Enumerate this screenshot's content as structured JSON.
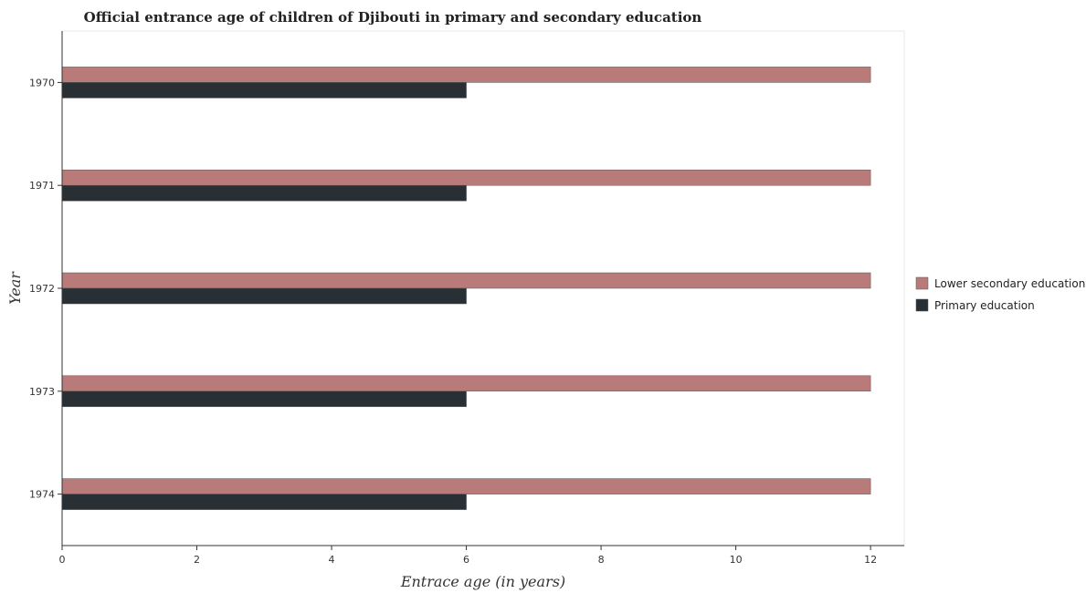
{
  "chart_data": {
    "type": "bar",
    "orientation": "horizontal",
    "title": "Official entrance age of children of Djibouti in primary and secondary education",
    "xlabel": "Entrace age (in  years)",
    "ylabel": "Year",
    "categories": [
      "1970",
      "1971",
      "1972",
      "1973",
      "1974"
    ],
    "series": [
      {
        "name": "Lower secondary education",
        "values": [
          12,
          12,
          12,
          12,
          12
        ],
        "color": "#b87b79"
      },
      {
        "name": "Primary education",
        "values": [
          6,
          6,
          6,
          6,
          6
        ],
        "color": "#293035"
      }
    ],
    "xlim": [
      0,
      12.5
    ],
    "xticks": [
      "0",
      "2",
      "4",
      "6",
      "8",
      "10",
      "12"
    ],
    "grid": false,
    "legend_position": "right"
  }
}
